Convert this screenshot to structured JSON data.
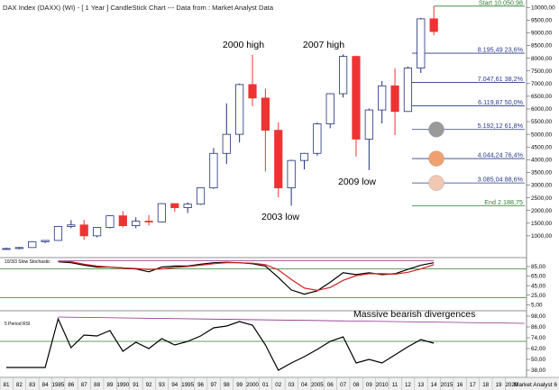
{
  "header": {
    "title": "DAX Index (DAXX) (WI) -  [ 1 Year ] CandleStick Chart --- Data from : Market Analyst Data"
  },
  "annotations": {
    "high_2000": "2000 high",
    "high_2007": "2007 high",
    "low_2003": "2003 low",
    "low_2009": "2009 low",
    "divergence": "Massive bearish divergences"
  },
  "panels": {
    "stochastic_label": "10/3/3 Slow Stochastic",
    "rsi_label": "5 Period RSI"
  },
  "footer": {
    "brand": "Market Analyst 6"
  },
  "colors": {
    "bull": "#ffffff",
    "bear": "#ee3333",
    "candle_outline": "#1f2f7a",
    "fib_line": "#2a3a8a",
    "fib_text": "#2a3a8a",
    "start_end_line": "#2e7d32",
    "stoch_k": "#000000",
    "stoch_d": "#d62020",
    "purple": "#8a2d8a",
    "hline": "#2e7d32",
    "circle_grey": "#9a9a9a",
    "circle_orange": "#f0a070",
    "circle_peach": "#f0c8b4"
  },
  "chart_data": [
    {
      "type": "candlestick",
      "title": "DAX Index (DAXX) (WI) -  [ 1 Year ] CandleStick Chart --- Data from : Market Analyst Data",
      "y_ticks": [
        "1000,00",
        "1500,00",
        "2000,00",
        "2500,00",
        "3000,00",
        "3500,00",
        "4000,00",
        "4500,00",
        "5000,00",
        "5500,00",
        "6000,00",
        "6500,00",
        "7000,00",
        "7500,00",
        "8000,00",
        "8500,00",
        "9000,00",
        "9500,00",
        "10000,00"
      ],
      "ylim": [
        250,
        10150
      ],
      "x_tick_labels": [
        "81",
        "82",
        "83",
        "84",
        "1985",
        "86",
        "87",
        "88",
        "89",
        "1990",
        "91",
        "92",
        "93",
        "94",
        "1995",
        "96",
        "97",
        "98",
        "99",
        "2000",
        "01",
        "02",
        "03",
        "04",
        "2005",
        "06",
        "07",
        "08",
        "09",
        "2010",
        "11",
        "12",
        "13",
        "14",
        "2015",
        "16",
        "17",
        "18",
        "19",
        "2020"
      ],
      "candles": [
        {
          "year": 1981,
          "open": 480,
          "high": 540,
          "low": 460,
          "close": 500
        },
        {
          "year": 1982,
          "open": 500,
          "high": 560,
          "low": 470,
          "close": 540
        },
        {
          "year": 1983,
          "open": 540,
          "high": 790,
          "low": 530,
          "close": 770
        },
        {
          "year": 1984,
          "open": 770,
          "high": 830,
          "low": 720,
          "close": 820
        },
        {
          "year": 1985,
          "open": 820,
          "high": 1390,
          "low": 810,
          "close": 1370
        },
        {
          "year": 1986,
          "open": 1370,
          "high": 1620,
          "low": 1300,
          "close": 1430
        },
        {
          "year": 1987,
          "open": 1430,
          "high": 1630,
          "low": 850,
          "close": 1000
        },
        {
          "year": 1988,
          "open": 1000,
          "high": 1330,
          "low": 940,
          "close": 1330
        },
        {
          "year": 1989,
          "open": 1330,
          "high": 1810,
          "low": 1290,
          "close": 1790
        },
        {
          "year": 1990,
          "open": 1790,
          "high": 1970,
          "low": 1330,
          "close": 1400
        },
        {
          "year": 1991,
          "open": 1400,
          "high": 1730,
          "low": 1300,
          "close": 1580
        },
        {
          "year": 1992,
          "open": 1580,
          "high": 1820,
          "low": 1410,
          "close": 1550
        },
        {
          "year": 1993,
          "open": 1550,
          "high": 2290,
          "low": 1530,
          "close": 2270
        },
        {
          "year": 1994,
          "open": 2270,
          "high": 2280,
          "low": 1950,
          "close": 2110
        },
        {
          "year": 1995,
          "open": 2110,
          "high": 2320,
          "low": 1900,
          "close": 2250
        },
        {
          "year": 1996,
          "open": 2250,
          "high": 2900,
          "low": 2220,
          "close": 2890
        },
        {
          "year": 1997,
          "open": 2890,
          "high": 4460,
          "low": 2850,
          "close": 4250
        },
        {
          "year": 1998,
          "open": 4250,
          "high": 6220,
          "low": 3830,
          "close": 5000
        },
        {
          "year": 1999,
          "open": 5000,
          "high": 7000,
          "low": 4680,
          "close": 6960
        },
        {
          "year": 2000,
          "open": 6960,
          "high": 8140,
          "low": 6110,
          "close": 6430
        },
        {
          "year": 2001,
          "open": 6430,
          "high": 6800,
          "low": 3540,
          "close": 5160
        },
        {
          "year": 2002,
          "open": 5160,
          "high": 5470,
          "low": 2520,
          "close": 2890
        },
        {
          "year": 2003,
          "open": 2890,
          "high": 4000,
          "low": 2190,
          "close": 3970
        },
        {
          "year": 2004,
          "open": 3970,
          "high": 4270,
          "low": 3620,
          "close": 4250
        },
        {
          "year": 2005,
          "open": 4250,
          "high": 5460,
          "low": 4160,
          "close": 5410
        },
        {
          "year": 2006,
          "open": 5410,
          "high": 6620,
          "low": 5240,
          "close": 6600
        },
        {
          "year": 2007,
          "open": 6600,
          "high": 8150,
          "low": 6450,
          "close": 8070
        },
        {
          "year": 2008,
          "open": 8070,
          "high": 8100,
          "low": 4130,
          "close": 4810
        },
        {
          "year": 2009,
          "open": 4810,
          "high": 6020,
          "low": 3590,
          "close": 5960
        },
        {
          "year": 2010,
          "open": 5960,
          "high": 7100,
          "low": 5430,
          "close": 6910
        },
        {
          "year": 2011,
          "open": 6910,
          "high": 7600,
          "low": 4970,
          "close": 5900
        },
        {
          "year": 2012,
          "open": 5900,
          "high": 7670,
          "low": 5900,
          "close": 7610
        },
        {
          "year": 2013,
          "open": 7610,
          "high": 9590,
          "low": 7420,
          "close": 9550
        },
        {
          "year": 2014,
          "open": 9550,
          "high": 10050,
          "low": 8900,
          "close": 9050
        }
      ],
      "levels": [
        {
          "label": "Start 10.050,98",
          "value": 10050.98,
          "kind": "start"
        },
        {
          "label": "8.195,49 23,6%",
          "value": 8195.49,
          "kind": "fib"
        },
        {
          "label": "7.047,61 38,2%",
          "value": 7047.61,
          "kind": "fib"
        },
        {
          "label": "6.119,87 50,0%",
          "value": 6119.87,
          "kind": "fib"
        },
        {
          "label": "5.192,12 61,8%",
          "value": 5192.12,
          "kind": "fib"
        },
        {
          "label": "4.044,24 76,4%",
          "value": 4044.24,
          "kind": "fib"
        },
        {
          "label": "3.085,04 88,6%",
          "value": 3085.04,
          "kind": "fib"
        },
        {
          "label": "End 2.188,75",
          "value": 2188.75,
          "kind": "end"
        }
      ],
      "circles": [
        {
          "value": 5192.12,
          "color": "#9a9a9a"
        },
        {
          "value": 4044.24,
          "color": "#f0a070"
        },
        {
          "value": 3085.04,
          "color": "#f0c8b4"
        }
      ]
    },
    {
      "type": "line",
      "title": "10/3/3 Slow Stochastic",
      "y_ticks": [
        "85,00",
        "65,00",
        "45,00",
        "25,00",
        "5,00"
      ],
      "ylim": [
        -2,
        100
      ],
      "hlines": [
        80,
        20
      ],
      "series": [
        {
          "name": "%K",
          "values": [
            {
              "year": 1985,
              "value": 95
            },
            {
              "year": 1986,
              "value": 93
            },
            {
              "year": 1987,
              "value": 88
            },
            {
              "year": 1988,
              "value": 84
            },
            {
              "year": 1989,
              "value": 84
            },
            {
              "year": 1990,
              "value": 82
            },
            {
              "year": 1991,
              "value": 80
            },
            {
              "year": 1992,
              "value": 74
            },
            {
              "year": 1993,
              "value": 84
            },
            {
              "year": 1994,
              "value": 86
            },
            {
              "year": 1995,
              "value": 86
            },
            {
              "year": 1996,
              "value": 90
            },
            {
              "year": 1997,
              "value": 93
            },
            {
              "year": 1998,
              "value": 94
            },
            {
              "year": 1999,
              "value": 93
            },
            {
              "year": 2000,
              "value": 91
            },
            {
              "year": 2001,
              "value": 86
            },
            {
              "year": 2002,
              "value": 62
            },
            {
              "year": 2003,
              "value": 36
            },
            {
              "year": 2004,
              "value": 27
            },
            {
              "year": 2005,
              "value": 34
            },
            {
              "year": 2006,
              "value": 52
            },
            {
              "year": 2007,
              "value": 72
            },
            {
              "year": 2008,
              "value": 68
            },
            {
              "year": 2009,
              "value": 72
            },
            {
              "year": 2010,
              "value": 68
            },
            {
              "year": 2011,
              "value": 70
            },
            {
              "year": 2012,
              "value": 79
            },
            {
              "year": 2013,
              "value": 88
            },
            {
              "year": 2014,
              "value": 93
            }
          ]
        },
        {
          "name": "%D",
          "values": [
            {
              "year": 1985,
              "value": 96
            },
            {
              "year": 1986,
              "value": 95
            },
            {
              "year": 1987,
              "value": 90
            },
            {
              "year": 1988,
              "value": 86
            },
            {
              "year": 1989,
              "value": 84
            },
            {
              "year": 1990,
              "value": 82
            },
            {
              "year": 1991,
              "value": 81
            },
            {
              "year": 1992,
              "value": 79
            },
            {
              "year": 1993,
              "value": 80
            },
            {
              "year": 1994,
              "value": 83
            },
            {
              "year": 1995,
              "value": 85
            },
            {
              "year": 1996,
              "value": 88
            },
            {
              "year": 1997,
              "value": 91
            },
            {
              "year": 1998,
              "value": 93
            },
            {
              "year": 1999,
              "value": 93
            },
            {
              "year": 2000,
              "value": 92
            },
            {
              "year": 2001,
              "value": 89
            },
            {
              "year": 2002,
              "value": 78
            },
            {
              "year": 2003,
              "value": 58
            },
            {
              "year": 2004,
              "value": 40
            },
            {
              "year": 2005,
              "value": 35
            },
            {
              "year": 2006,
              "value": 41
            },
            {
              "year": 2007,
              "value": 56
            },
            {
              "year": 2008,
              "value": 66
            },
            {
              "year": 2009,
              "value": 70
            },
            {
              "year": 2010,
              "value": 70
            },
            {
              "year": 2011,
              "value": 69
            },
            {
              "year": 2012,
              "value": 73
            },
            {
              "year": 2013,
              "value": 80
            },
            {
              "year": 2014,
              "value": 89
            }
          ]
        },
        {
          "name": "",
          "values": [
            {
              "year": 1985,
              "value": 97
            },
            {
              "year": 2014,
              "value": 97
            }
          ]
        }
      ]
    },
    {
      "type": "line",
      "title": "5 Period RSI",
      "y_ticks": [
        "98,00",
        "86,00",
        "74,00",
        "62,00",
        "50,00",
        "38,00"
      ],
      "ylim": [
        32,
        101
      ],
      "hlines": [
        70,
        30
      ],
      "series": [
        {
          "name": "RSI",
          "values": [
            {
              "year": 1981,
              "value": 41
            },
            {
              "year": 1982,
              "value": 41
            },
            {
              "year": 1983,
              "value": 41
            },
            {
              "year": 1984,
              "value": 41
            },
            {
              "year": 1985,
              "value": 95
            },
            {
              "year": 1986,
              "value": 63
            },
            {
              "year": 1987,
              "value": 77
            },
            {
              "year": 1988,
              "value": 76
            },
            {
              "year": 1989,
              "value": 82
            },
            {
              "year": 1990,
              "value": 59
            },
            {
              "year": 1991,
              "value": 69
            },
            {
              "year": 1992,
              "value": 62
            },
            {
              "year": 1993,
              "value": 73
            },
            {
              "year": 1994,
              "value": 66
            },
            {
              "year": 1995,
              "value": 70
            },
            {
              "year": 1996,
              "value": 76
            },
            {
              "year": 1997,
              "value": 85
            },
            {
              "year": 1998,
              "value": 87
            },
            {
              "year": 1999,
              "value": 92
            },
            {
              "year": 2000,
              "value": 88
            },
            {
              "year": 2001,
              "value": 66
            },
            {
              "year": 2002,
              "value": 38
            },
            {
              "year": 2003,
              "value": 46
            },
            {
              "year": 2004,
              "value": 53
            },
            {
              "year": 2005,
              "value": 61
            },
            {
              "year": 2006,
              "value": 70
            },
            {
              "year": 2007,
              "value": 75
            },
            {
              "year": 2008,
              "value": 46
            },
            {
              "year": 2009,
              "value": 50
            },
            {
              "year": 2010,
              "value": 46
            },
            {
              "year": 2011,
              "value": 55
            },
            {
              "year": 2012,
              "value": 64
            },
            {
              "year": 2013,
              "value": 72
            },
            {
              "year": 2014,
              "value": 68
            }
          ]
        },
        {
          "name": "",
          "values": [
            {
              "year": 1985,
              "value": 97
            },
            {
              "year": 2021,
              "value": 90
            }
          ]
        }
      ]
    }
  ]
}
